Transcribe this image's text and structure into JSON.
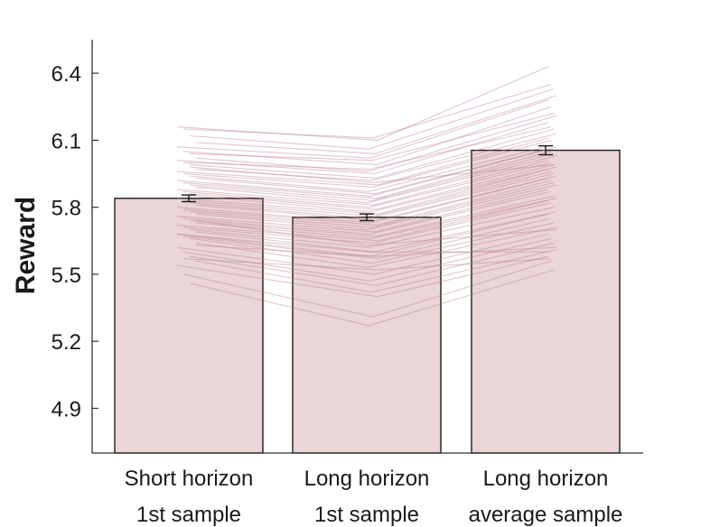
{
  "chart_data": {
    "type": "bar",
    "ylabel": "Reward",
    "ylim": [
      4.7,
      6.55
    ],
    "yticks": [
      "4.9",
      "5.2",
      "5.5",
      "5.8",
      "6.1",
      "6.4"
    ],
    "categories": [
      [
        "Short horizon",
        "1st sample"
      ],
      [
        "Long horizon",
        "1st sample"
      ],
      [
        "Long horizon",
        "average sample"
      ]
    ],
    "values": [
      5.84,
      5.755,
      6.055
    ],
    "errors": [
      0.015,
      0.015,
      0.02
    ],
    "bar_color": "#ead5d7",
    "line_color": "#b87a86",
    "individual_lines": [
      [
        6.16,
        6.1,
        6.43
      ],
      [
        6.15,
        6.11,
        6.35
      ],
      [
        6.12,
        6.06,
        6.33
      ],
      [
        6.09,
        6.04,
        6.3
      ],
      [
        6.07,
        6.02,
        6.28
      ],
      [
        6.05,
        5.99,
        6.25
      ],
      [
        6.04,
        6.01,
        6.22
      ],
      [
        6.02,
        5.96,
        6.21
      ],
      [
        6.01,
        5.95,
        6.18
      ],
      [
        6.0,
        5.97,
        6.16
      ],
      [
        5.99,
        5.93,
        6.15
      ],
      [
        5.97,
        5.92,
        6.13
      ],
      [
        5.96,
        5.9,
        6.11
      ],
      [
        5.95,
        5.89,
        6.1
      ],
      [
        5.94,
        5.87,
        6.08
      ],
      [
        5.93,
        5.86,
        6.07
      ],
      [
        5.92,
        5.85,
        6.06
      ],
      [
        5.91,
        5.84,
        6.05
      ],
      [
        5.9,
        5.83,
        6.04
      ],
      [
        5.89,
        5.82,
        6.03
      ],
      [
        5.88,
        5.81,
        6.01
      ],
      [
        5.87,
        5.8,
        6.0
      ],
      [
        5.86,
        5.79,
        5.99
      ],
      [
        5.85,
        5.78,
        5.98
      ],
      [
        5.84,
        5.77,
        5.97
      ],
      [
        5.83,
        5.76,
        5.96
      ],
      [
        5.82,
        5.75,
        5.95
      ],
      [
        5.81,
        5.74,
        5.94
      ],
      [
        5.8,
        5.73,
        5.93
      ],
      [
        5.79,
        5.72,
        5.92
      ],
      [
        5.78,
        5.71,
        5.91
      ],
      [
        5.77,
        5.7,
        5.9
      ],
      [
        5.76,
        5.69,
        5.88
      ],
      [
        5.75,
        5.68,
        5.87
      ],
      [
        5.74,
        5.67,
        5.85
      ],
      [
        5.73,
        5.66,
        5.84
      ],
      [
        5.72,
        5.65,
        5.83
      ],
      [
        5.71,
        5.64,
        5.82
      ],
      [
        5.7,
        5.62,
        5.8
      ],
      [
        5.69,
        5.6,
        5.78
      ],
      [
        5.68,
        5.58,
        5.77
      ],
      [
        5.67,
        5.57,
        5.75
      ],
      [
        5.66,
        5.55,
        5.73
      ],
      [
        5.64,
        5.53,
        5.71
      ],
      [
        5.62,
        5.5,
        5.68
      ],
      [
        5.6,
        5.47,
        5.66
      ],
      [
        5.58,
        5.45,
        5.64
      ],
      [
        5.56,
        5.42,
        5.61
      ],
      [
        5.54,
        5.4,
        5.58
      ],
      [
        5.5,
        5.31,
        5.56
      ],
      [
        5.46,
        5.27,
        5.52
      ],
      [
        5.63,
        5.58,
        5.62
      ],
      [
        5.68,
        5.6,
        5.6
      ],
      [
        5.57,
        5.52,
        5.57
      ],
      [
        5.98,
        5.91,
        5.99
      ],
      [
        5.74,
        5.63,
        5.7
      ]
    ]
  }
}
